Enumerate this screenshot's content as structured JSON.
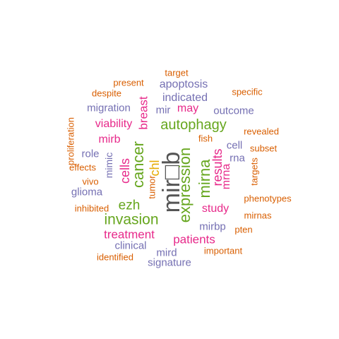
{
  "colors": {
    "gray": "#555555",
    "green": "#66a61e",
    "magenta": "#e7298a",
    "purple": "#7570b3",
    "orange": "#d95f02",
    "gold": "#e6ab02"
  },
  "words": [
    {
      "text": "mir□b",
      "color": "gray"
    },
    {
      "text": "expression",
      "color": "green"
    },
    {
      "text": "cancer",
      "color": "green"
    },
    {
      "text": "mirna",
      "color": "green"
    },
    {
      "text": "invasion",
      "color": "green"
    },
    {
      "text": "autophagy",
      "color": "green"
    },
    {
      "text": "ezh",
      "color": "green"
    },
    {
      "text": "cells",
      "color": "magenta"
    },
    {
      "text": "results",
      "color": "magenta"
    },
    {
      "text": "chl",
      "color": "gold"
    },
    {
      "text": "patients",
      "color": "magenta"
    },
    {
      "text": "treatment",
      "color": "magenta"
    },
    {
      "text": "breast",
      "color": "magenta"
    },
    {
      "text": "study",
      "color": "magenta"
    },
    {
      "text": "mrna",
      "color": "magenta"
    },
    {
      "text": "viability",
      "color": "magenta"
    },
    {
      "text": "mirb",
      "color": "magenta"
    },
    {
      "text": "may",
      "color": "magenta"
    },
    {
      "text": "apoptosis",
      "color": "purple"
    },
    {
      "text": "indicated",
      "color": "purple"
    },
    {
      "text": "migration",
      "color": "purple"
    },
    {
      "text": "mir",
      "color": "purple"
    },
    {
      "text": "outcome",
      "color": "purple"
    },
    {
      "text": "clinical",
      "color": "purple"
    },
    {
      "text": "mird",
      "color": "purple"
    },
    {
      "text": "signature",
      "color": "purple"
    },
    {
      "text": "glioma",
      "color": "purple"
    },
    {
      "text": "role",
      "color": "purple"
    },
    {
      "text": "mimic",
      "color": "purple"
    },
    {
      "text": "cell",
      "color": "purple"
    },
    {
      "text": "rna",
      "color": "purple"
    },
    {
      "text": "mirbp",
      "color": "purple"
    },
    {
      "text": "target",
      "color": "orange"
    },
    {
      "text": "present",
      "color": "orange"
    },
    {
      "text": "despite",
      "color": "orange"
    },
    {
      "text": "specific",
      "color": "orange"
    },
    {
      "text": "proliferation",
      "color": "orange"
    },
    {
      "text": "revealed",
      "color": "orange"
    },
    {
      "text": "fish",
      "color": "orange"
    },
    {
      "text": "subset",
      "color": "orange"
    },
    {
      "text": "targets",
      "color": "orange"
    },
    {
      "text": "vivo",
      "color": "orange"
    },
    {
      "text": "effects",
      "color": "orange"
    },
    {
      "text": "tumor",
      "color": "orange"
    },
    {
      "text": "phenotypes",
      "color": "orange"
    },
    {
      "text": "inhibited",
      "color": "orange"
    },
    {
      "text": "mirnas",
      "color": "orange"
    },
    {
      "text": "pten",
      "color": "orange"
    },
    {
      "text": "important",
      "color": "orange"
    },
    {
      "text": "identified",
      "color": "orange"
    }
  ]
}
